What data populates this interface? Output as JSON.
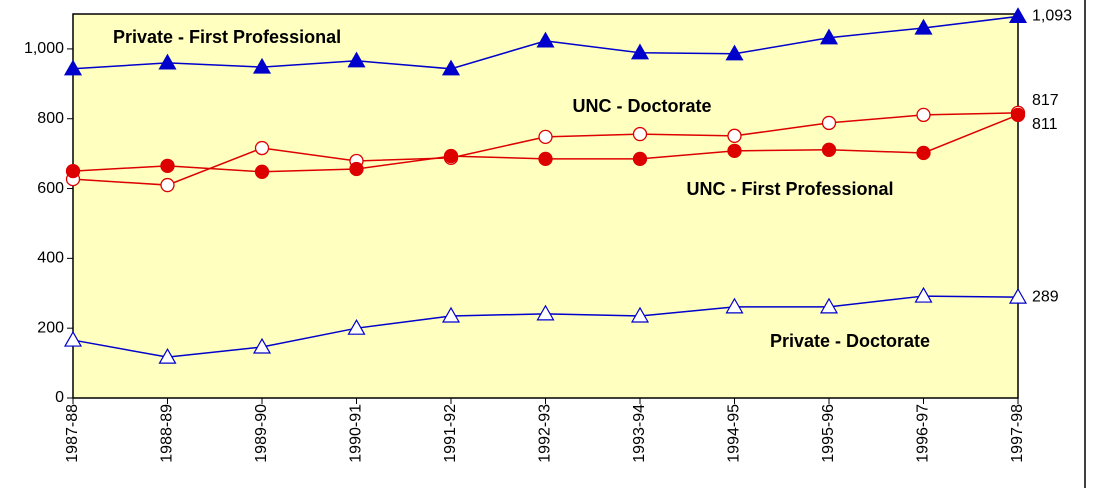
{
  "chart_data": {
    "type": "line",
    "categories": [
      "1987-88",
      "1988-89",
      "1989-90",
      "1990-91",
      "1991-92",
      "1992-93",
      "1993-94",
      "1994-95",
      "1995-96",
      "1996-97",
      "1997-98"
    ],
    "ylim": [
      0,
      1100
    ],
    "yticks": [
      0,
      200,
      400,
      600,
      800,
      {
        "value": 1000,
        "label": "1,000"
      }
    ],
    "series": [
      {
        "name": "Private - First Professional",
        "color": "#0000cc",
        "marker": "triangle",
        "filled": true,
        "values": [
          943,
          960,
          948,
          966,
          943,
          1023,
          989,
          986,
          1032,
          1060,
          1093
        ],
        "value_labels": [
          null,
          null,
          null,
          null,
          null,
          null,
          null,
          null,
          null,
          null,
          "1,093"
        ]
      },
      {
        "name": "UNC - Doctorate",
        "color": "#dd0000",
        "marker": "circle",
        "filled": false,
        "values": [
          627,
          610,
          716,
          679,
          688,
          748,
          756,
          751,
          788,
          811,
          817
        ],
        "value_labels": [
          null,
          null,
          null,
          null,
          null,
          null,
          null,
          null,
          null,
          null,
          "817"
        ]
      },
      {
        "name": "UNC - First Professional",
        "color": "#dd0000",
        "marker": "circle",
        "filled": true,
        "values": [
          650,
          665,
          648,
          656,
          693,
          685,
          685,
          708,
          711,
          702,
          811
        ],
        "value_labels": [
          null,
          null,
          null,
          null,
          null,
          null,
          null,
          null,
          null,
          null,
          "811"
        ]
      },
      {
        "name": "Private - Doctorate",
        "color": "#0000cc",
        "marker": "triangle",
        "filled": false,
        "values": [
          166,
          117,
          146,
          200,
          235,
          241,
          235,
          261,
          261,
          292,
          289
        ],
        "value_labels": [
          null,
          null,
          null,
          null,
          null,
          null,
          null,
          null,
          null,
          null,
          "289"
        ]
      }
    ]
  }
}
